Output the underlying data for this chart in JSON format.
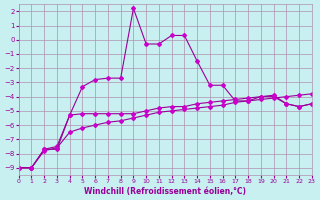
{
  "bg_color": "#c8f0f0",
  "grid_color": "#b090b0",
  "line_color": "#990099",
  "marker_color": "#cc00cc",
  "xlabel": "Windchill (Refroidissement éolien,°C)",
  "xlim": [
    0,
    23
  ],
  "ylim": [
    -9.5,
    2.5
  ],
  "yticks": [
    2,
    1,
    0,
    -1,
    -2,
    -3,
    -4,
    -5,
    -6,
    -7,
    -8,
    -9
  ],
  "xticks": [
    0,
    1,
    2,
    3,
    4,
    5,
    6,
    7,
    8,
    9,
    10,
    11,
    12,
    13,
    14,
    15,
    16,
    17,
    18,
    19,
    20,
    21,
    22,
    23
  ],
  "curve1_x": [
    0,
    1,
    2,
    3,
    4,
    5,
    6,
    7,
    8,
    9,
    10,
    11,
    12,
    13,
    14,
    15,
    16,
    17,
    18,
    19,
    20,
    21,
    22,
    23
  ],
  "curve1_y": [
    -9,
    -9,
    -7.7,
    -7.7,
    -5.3,
    -3.3,
    -2.8,
    -2.7,
    -2.7,
    2.2,
    -0.3,
    -0.3,
    0.3,
    0.3,
    -1.5,
    -3.2,
    -3.2,
    -4.3,
    -4.3,
    -4.0,
    -4.0,
    -4.5,
    -4.7,
    -4.5
  ],
  "curve2_x": [
    0,
    1,
    2,
    3,
    4,
    5,
    6,
    7,
    8,
    9,
    10,
    11,
    12,
    13,
    14,
    15,
    16,
    17,
    18,
    19,
    20,
    21,
    22,
    23
  ],
  "curve2_y": [
    -9,
    -9,
    -7.7,
    -7.5,
    -5.3,
    -5.2,
    -5.2,
    -5.2,
    -5.2,
    -5.2,
    -5.0,
    -4.8,
    -4.7,
    -4.7,
    -4.5,
    -4.4,
    -4.3,
    -4.2,
    -4.1,
    -4.0,
    -3.9,
    -4.5,
    -4.7,
    -4.5
  ],
  "curve3_x": [
    0,
    1,
    2,
    3,
    4,
    5,
    6,
    7,
    8,
    9,
    10,
    11,
    12,
    13,
    14,
    15,
    16,
    17,
    18,
    19,
    20,
    21,
    22,
    23
  ],
  "curve3_y": [
    -9,
    -9,
    -7.8,
    -7.6,
    -6.5,
    -6.2,
    -6.0,
    -5.8,
    -5.7,
    -5.5,
    -5.3,
    -5.1,
    -5.0,
    -4.9,
    -4.8,
    -4.7,
    -4.6,
    -4.4,
    -4.3,
    -4.2,
    -4.1,
    -4.0,
    -3.9,
    -3.8
  ]
}
